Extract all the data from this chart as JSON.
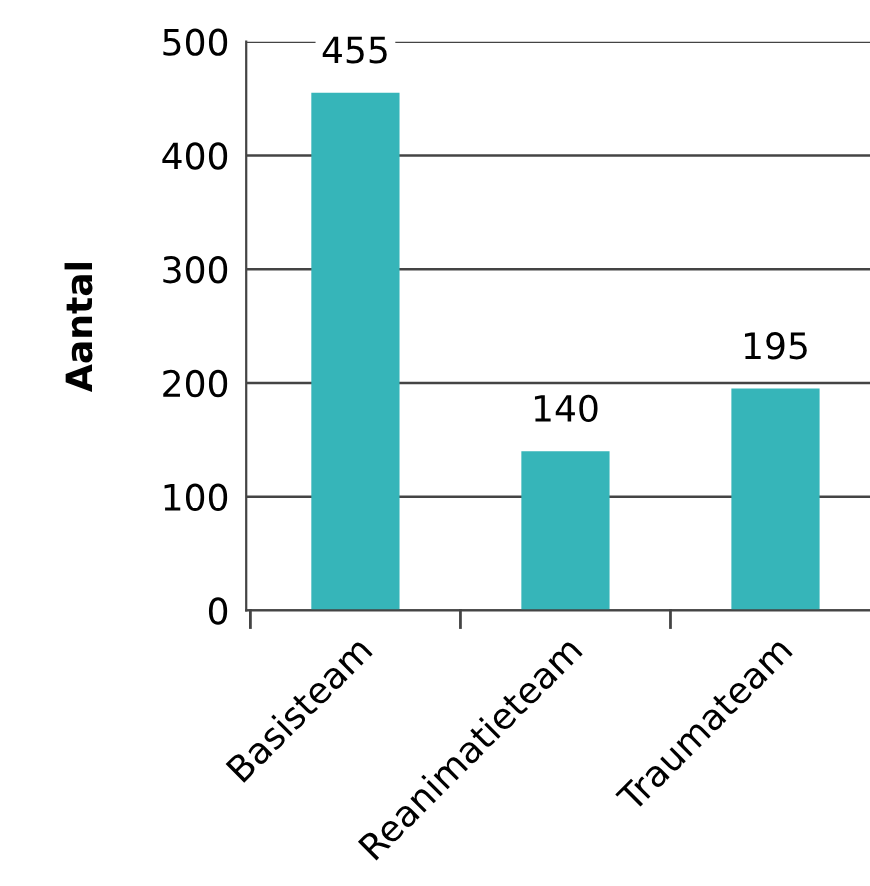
{
  "chart_data": {
    "type": "bar",
    "ylabel": "Aantal",
    "categories": [
      "Basisteam",
      "Reanimatieteam",
      "Traumateam"
    ],
    "values": [
      455,
      140,
      195
    ],
    "color": "#36b5b9",
    "ylim": [
      0,
      500
    ],
    "yticks": [
      0,
      100,
      200,
      300,
      400,
      500
    ],
    "grid": "y",
    "data_labels": true
  }
}
